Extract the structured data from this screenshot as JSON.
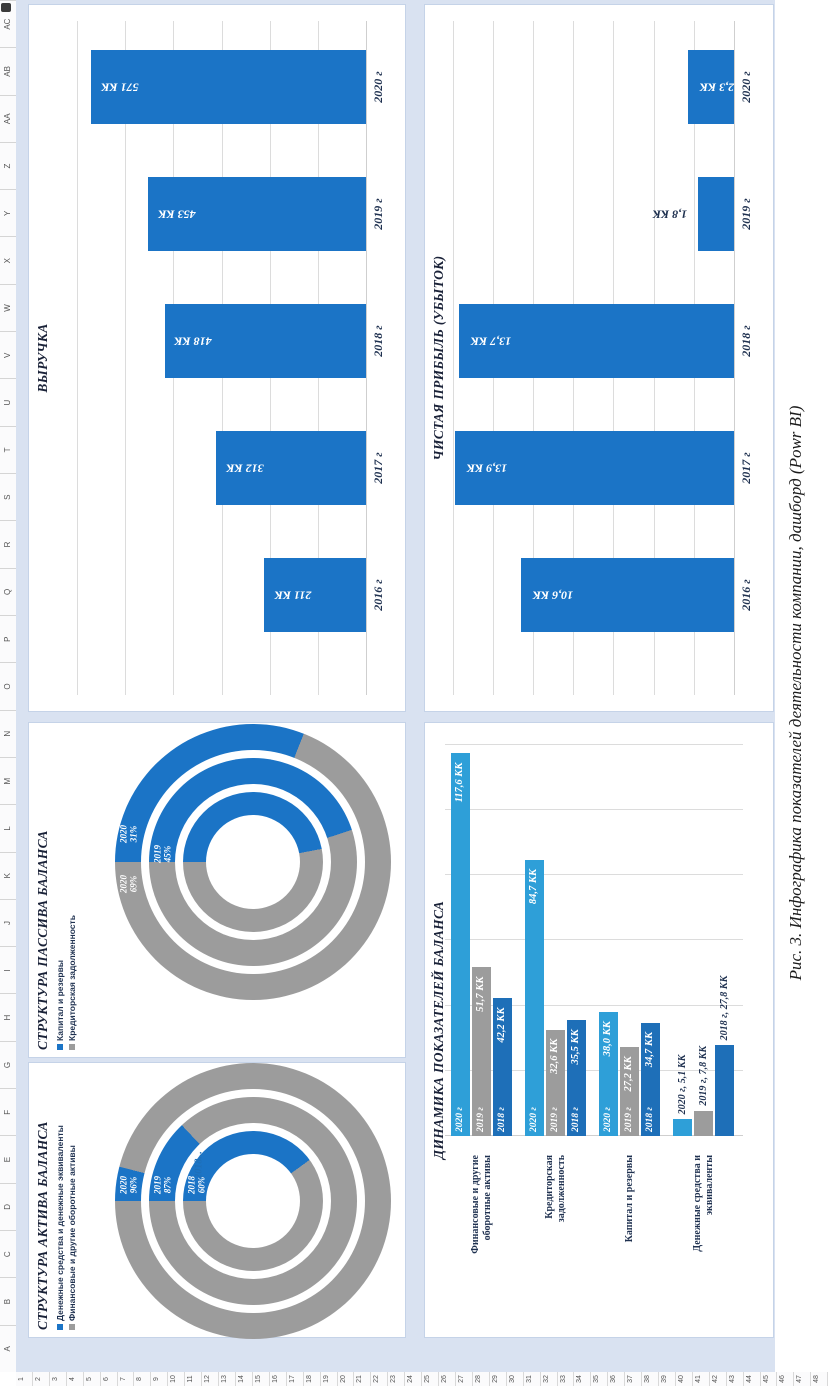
{
  "figure": {
    "caption": "Рис. 3. Инфографика показателей деятельности компании, дашборд (Powr BI)"
  },
  "spreadsheet": {
    "column_letters": [
      "A",
      "B",
      "C",
      "D",
      "E",
      "F",
      "G",
      "H",
      "I",
      "J",
      "K",
      "L",
      "M",
      "N",
      "O",
      "P",
      "Q",
      "R",
      "S",
      "T",
      "U",
      "V",
      "W",
      "X",
      "Y",
      "Z",
      "AA",
      "AB",
      "AC"
    ],
    "row_numbers_start": 1,
    "row_numbers_end": 48
  },
  "colors": {
    "accent_blue": "#1B74C6",
    "light_blue_2020": "#2E9FD8",
    "gray_2019": "#9C9C9C",
    "mid_blue_2018": "#1E6FB8",
    "navy_text": "#1F3150",
    "sheet_bg": "#D9E2F1",
    "panel_border": "#C5D3E8",
    "gridline": "#DCDCDC"
  },
  "chart_data": [
    {
      "id": "revenue",
      "type": "bar",
      "title": "ВЫРУЧКА",
      "unit": "КК",
      "categories": [
        "2016 г",
        "2017 г",
        "2018 г",
        "2019 г",
        "2020 г"
      ],
      "values": [
        211,
        312,
        418,
        453,
        571
      ],
      "value_labels": [
        "211 КК",
        "312 КК",
        "418 КК",
        "453 КК",
        "571 КК"
      ],
      "label_inside": [
        true,
        true,
        true,
        true,
        true
      ],
      "ylim": [
        0,
        640
      ],
      "grid_step": 100,
      "grid": "on",
      "legend_position": "none"
    },
    {
      "id": "net-profit",
      "type": "bar",
      "title": "ЧИСТАЯ ПРИБЫЛЬ (УБЫТОК)",
      "unit": "КК",
      "categories": [
        "2016 г",
        "2017 г",
        "2018 г",
        "2019 г",
        "2020 г"
      ],
      "values": [
        10.6,
        13.9,
        13.7,
        1.8,
        2.3
      ],
      "value_labels": [
        "10,6 КК",
        "13,9 КК",
        "13,7 КК",
        "1,8 КК",
        "2,3 КК"
      ],
      "label_inside": [
        true,
        true,
        true,
        false,
        true
      ],
      "ylim": [
        0,
        14.6
      ],
      "grid_step": 2,
      "grid": "on",
      "legend_position": "none"
    },
    {
      "id": "assets-structure",
      "type": "donut",
      "title": "СТРУКТУРА АКТИВА БАЛАНСА",
      "legend": [
        {
          "label": "Денежные средства и денежные эквиваленты",
          "color_key": "accent_blue"
        },
        {
          "label": "Финансовые и другие оборотные активы",
          "color_key": "gray_2019"
        }
      ],
      "rings": [
        {
          "year": "2020",
          "blue_pct": 4,
          "labels": [
            {
              "text_lines": [
                "2020",
                "96%"
              ],
              "on": "gray"
            }
          ]
        },
        {
          "year": "2019",
          "blue_pct": 13,
          "labels": [
            {
              "text_lines": [
                "2019",
                "87%"
              ],
              "on": "gray"
            }
          ]
        },
        {
          "year": "2018",
          "blue_pct": 40,
          "labels": [
            {
              "text_lines": [
                "2018",
                "60%"
              ],
              "on": "gray"
            }
          ]
        }
      ],
      "extra_label": "2018..."
    },
    {
      "id": "liabilities-structure",
      "type": "donut",
      "title": "СТРУКТУРА ПАССИВА БАЛАНСА",
      "legend": [
        {
          "label": "Капитал и резервы",
          "color_key": "accent_blue"
        },
        {
          "label": "Кредиторская задолженность",
          "color_key": "gray_2019"
        }
      ],
      "rings": [
        {
          "year": "2020",
          "blue_pct": 31,
          "labels": [
            {
              "text_lines": [
                "2020",
                "69%"
              ],
              "on": "gray"
            },
            {
              "text_lines": [
                "2020",
                "31%"
              ],
              "on": "blue"
            }
          ]
        },
        {
          "year": "2019",
          "blue_pct": 45,
          "labels": [
            {
              "text_lines": [
                "2019",
                "45%"
              ],
              "on": "blue"
            }
          ]
        },
        {
          "year": "2018",
          "blue_pct": 47,
          "labels": []
        }
      ],
      "extra_label": ""
    },
    {
      "id": "balance-dynamics",
      "type": "hbar-grouped",
      "title": "ДИНАМИКА ПОКАЗАТЕЛЕЙ БАЛАНСА",
      "unit": "КК",
      "series_years": [
        "2020 г",
        "2019 г",
        "2018 г"
      ],
      "groups": [
        {
          "category_lines": [
            "Финансовые и другие",
            "оборотные активы"
          ],
          "values": [
            117.6,
            51.7,
            42.2
          ],
          "value_labels": [
            "117,6 КК",
            "51,7 КК",
            "42,2 КК"
          ],
          "labels_outside": false
        },
        {
          "category_lines": [
            "Кредиторская",
            "задолженность"
          ],
          "values": [
            84.7,
            32.6,
            35.5
          ],
          "value_labels": [
            "84,7 КК",
            "32,6 КК",
            "35,5 КК"
          ],
          "labels_outside": false
        },
        {
          "category_lines": [
            "Капитал и резервы"
          ],
          "values": [
            38.0,
            27.2,
            34.7
          ],
          "value_labels": [
            "38,0 КК",
            "27,2 КК",
            "34,7 КК"
          ],
          "labels_outside": false
        },
        {
          "category_lines": [
            "Денежные средства и",
            "эквиваленты"
          ],
          "values": [
            5.1,
            7.8,
            27.8
          ],
          "value_labels": [
            "2020 г, 5,1 КК",
            "2019 г, 7,8 КК",
            "2018 г, 27,8 КК"
          ],
          "labels_outside": true
        }
      ],
      "xlim": [
        0,
        126
      ],
      "grid_step": 20,
      "grid": "on",
      "legend_position": "none"
    }
  ]
}
